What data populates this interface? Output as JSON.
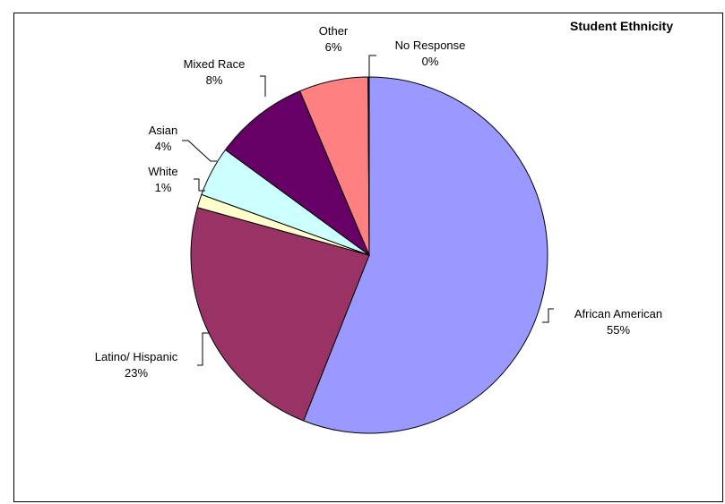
{
  "chart_data": {
    "type": "pie",
    "title": "Student Ethnicity",
    "start_angle_deg": 0,
    "direction": "clockwise",
    "legend": "none",
    "slices": [
      {
        "label": "African American",
        "percent_label": "55%",
        "value": 55.5,
        "color": "#9999ff"
      },
      {
        "label": "Latino/ Hispanic",
        "percent_label": "23%",
        "value": 23.1,
        "color": "#993366"
      },
      {
        "label": "White",
        "percent_label": "1%",
        "value": 1.2,
        "color": "#ffffcc"
      },
      {
        "label": "Asian",
        "percent_label": "4%",
        "value": 4.5,
        "color": "#ccffff"
      },
      {
        "label": "Mixed Race",
        "percent_label": "8%",
        "value": 8.5,
        "color": "#660066"
      },
      {
        "label": "Other",
        "percent_label": "6%",
        "value": 6.2,
        "color": "#ff8080"
      },
      {
        "label": "No Response",
        "percent_label": "0%",
        "value": 0.1,
        "color": "#0066cc"
      }
    ]
  }
}
